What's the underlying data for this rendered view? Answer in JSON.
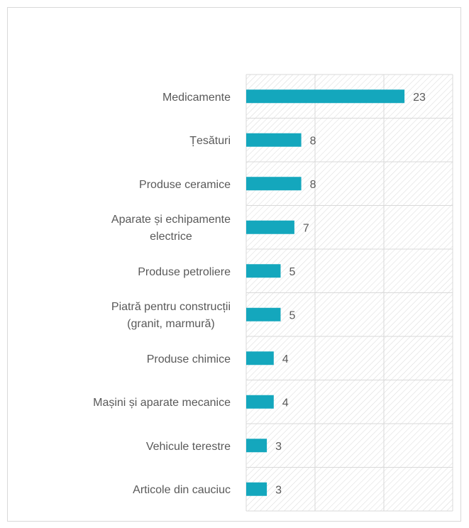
{
  "chart_data": {
    "type": "bar",
    "orientation": "horizontal",
    "categories": [
      "Medicamente",
      "Țesături",
      "Produse ceramice",
      "Aparate și echipamente\nelectrice",
      "Produse petroliere",
      "Piatră pentru construcții\n(granit, marmură)",
      "Produse chimice",
      "Mașini și aparate mecanice",
      "Vehicule terestre",
      "Articole din cauciuc"
    ],
    "values": [
      23,
      8,
      8,
      7,
      5,
      5,
      4,
      4,
      3,
      3
    ],
    "color": "#14a7bd",
    "xlim": [
      0,
      30
    ],
    "xticks": [
      0,
      10,
      20,
      30
    ],
    "grid": true
  }
}
